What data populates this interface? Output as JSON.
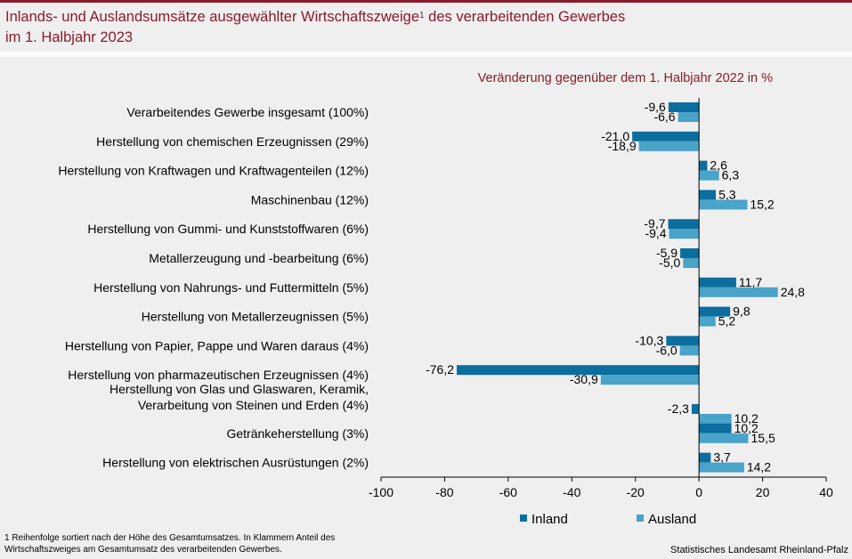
{
  "header": {
    "title_part1": "Inlands- und Auslandsumsätze ausgewählter Wirtschaftszweige",
    "title_sup": "1",
    "title_part2": " des verarbeitenden Gewerbes",
    "title_line2": "im 1. Halbjahr 2023"
  },
  "footnote": {
    "line1": "1 Reihenfolge sortiert nach der Höhe des Gesamtumsatzes. In Klammern Anteil des",
    "line2": "Wirtschaftszweiges am Gesamtumsatz des verarbeitenden Gewerbes."
  },
  "source": "Statistisches Landesamt Rheinland-Pfalz",
  "colors": {
    "inland": "#0b6e9e",
    "ausland": "#4aa3c8",
    "accent": "#8b1a2b",
    "background": "#efefef"
  },
  "chart_data": {
    "type": "bar",
    "orientation": "horizontal",
    "title": "Inlands- und Auslandsumsätze ausgewählter Wirtschaftszweige des verarbeitenden Gewerbes im 1. Halbjahr 2023",
    "subtitle": "Veränderung gegenüber dem 1. Halbjahr 2022  in %",
    "xlabel": "",
    "ylabel": "",
    "xlim": [
      -100,
      40
    ],
    "xticks": [
      -100,
      -80,
      -60,
      -40,
      -20,
      0,
      20,
      40
    ],
    "grid": false,
    "legend_position": "bottom",
    "categories": [
      [
        "Verarbeitendes Gewerbe insgesamt (100%)"
      ],
      [
        "Herstellung von chemischen Erzeugnissen (29%)"
      ],
      [
        "Herstellung von Kraftwagen und Kraftwagenteilen (12%)"
      ],
      [
        "Maschinenbau (12%)"
      ],
      [
        "Herstellung von Gummi- und Kunststoffwaren (6%)"
      ],
      [
        "Metallerzeugung und -bearbeitung (6%)"
      ],
      [
        "Herstellung von Nahrungs- und Futtermitteln (5%)"
      ],
      [
        "Herstellung von Metallerzeugnissen (5%)"
      ],
      [
        "Herstellung von Papier, Pappe und Waren daraus (4%)"
      ],
      [
        "Herstellung von pharmazeutischen Erzeugnissen (4%)"
      ],
      [
        "Herstellung von Glas und Glaswaren, Keramik,",
        "Verarbeitung von Steinen und Erden (4%)"
      ],
      [
        "Getränkeherstellung (3%)"
      ],
      [
        "Herstellung von elektrischen Ausrüstungen (2%)"
      ]
    ],
    "series": [
      {
        "name": "Inland",
        "values": [
          -9.6,
          -21.0,
          2.6,
          5.3,
          -9.7,
          -5.9,
          11.7,
          9.8,
          -10.3,
          -76.2,
          -2.3,
          10.2,
          3.7
        ],
        "labels": [
          "-9,6",
          "-21,0",
          "2,6",
          "5,3",
          "-9,7",
          "-5,9",
          "11,7",
          "9,8",
          "-10,3",
          "-76,2",
          "-2,3",
          "10,2",
          "3,7"
        ]
      },
      {
        "name": "Ausland",
        "values": [
          -6.6,
          -18.9,
          6.3,
          15.2,
          -9.4,
          -5.0,
          24.8,
          5.2,
          -6.0,
          -30.9,
          10.2,
          15.5,
          14.2
        ],
        "labels": [
          "-6,6",
          "-18,9",
          "6,3",
          "15,2",
          "-9,4",
          "-5,0",
          "24,8",
          "5,2",
          "-6,0",
          "-30,9",
          "10,2",
          "15,5",
          "14,2"
        ]
      }
    ]
  }
}
